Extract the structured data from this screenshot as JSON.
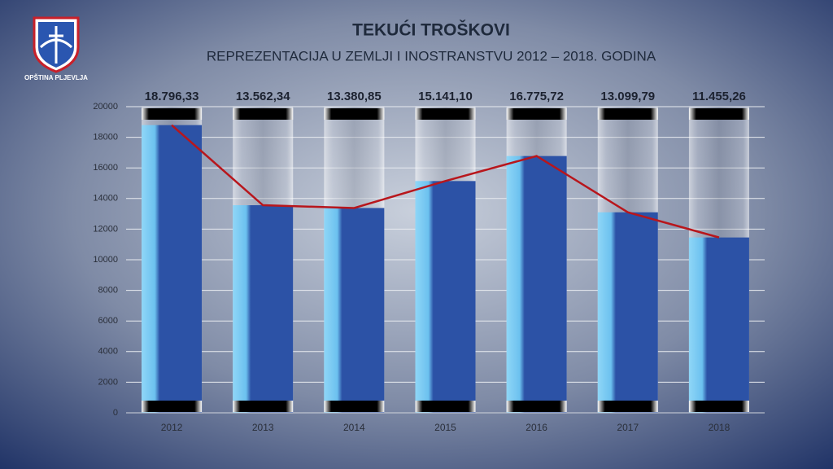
{
  "logo": {
    "text": "OPŠTINA PLJEVLJA"
  },
  "chart_data": {
    "type": "bar",
    "title": "TEKUĆI TROŠKOVI",
    "subtitle": "REPREZENTACIJA U ZEMLJI I INOSTRANSTVU 2012 – 2018. GODINA",
    "categories": [
      "2012",
      "2013",
      "2014",
      "2015",
      "2016",
      "2017",
      "2018"
    ],
    "values": [
      18796.33,
      13562.34,
      13380.85,
      15141.1,
      16775.72,
      13099.79,
      11455.26
    ],
    "value_labels": [
      "18.796,33",
      "13.562,34",
      "13.380,85",
      "15.141,10",
      "16.775,72",
      "13.099,79",
      "11.455,26"
    ],
    "color": "#2c52a6",
    "line_color": "#b8161c",
    "ylim": [
      0,
      20000
    ],
    "yticks": [
      0,
      2000,
      4000,
      6000,
      8000,
      10000,
      12000,
      14000,
      16000,
      18000,
      20000
    ],
    "grid": true
  }
}
